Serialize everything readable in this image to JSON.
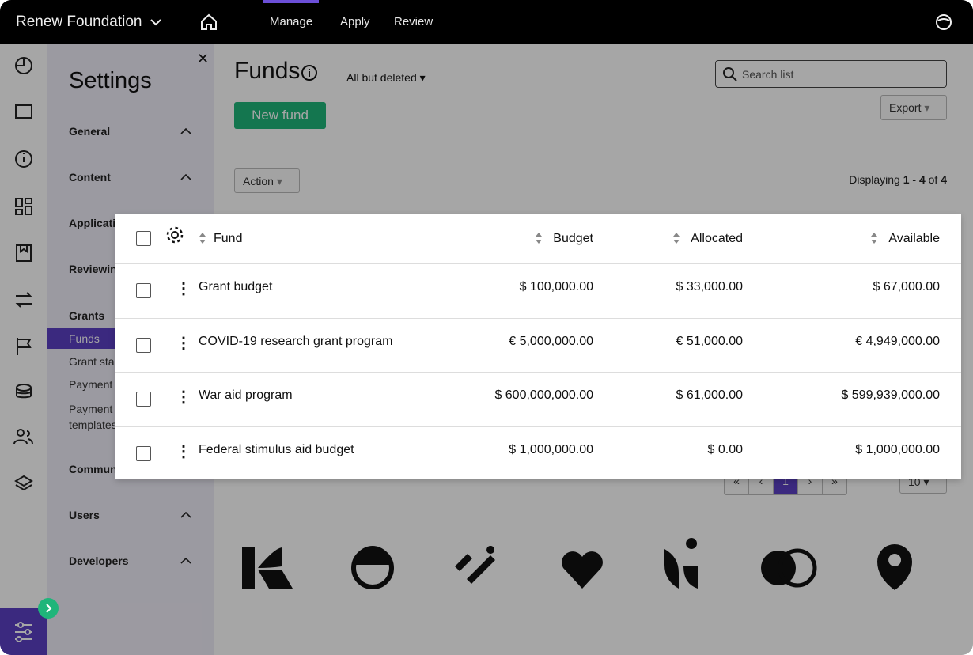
{
  "header": {
    "org": "Renew Foundation",
    "nav": [
      "Manage",
      "Apply",
      "Review"
    ]
  },
  "settings": {
    "title": "Settings",
    "sections": [
      "General",
      "Content",
      "Applicati",
      "Reviewin"
    ],
    "grants": {
      "title": "Grants",
      "items": [
        "Funds",
        "Grant sta",
        "Payment",
        "Payment templates"
      ]
    },
    "more_sections": [
      "Commun",
      "Users",
      "Developers"
    ]
  },
  "main": {
    "title": "Funds",
    "filter": "All but deleted",
    "new_button": "New fund",
    "search_placeholder": "Search list",
    "export": "Export",
    "action": "Action",
    "displaying": {
      "prefix": "Displaying",
      "range": "1 - 4",
      "of": "of",
      "total": "4"
    }
  },
  "table": {
    "columns": [
      "Fund",
      "Budget",
      "Allocated",
      "Available"
    ],
    "rows": [
      [
        "Grant budget",
        "$ 100,000.00",
        "$ 33,000.00",
        "$ 67,000.00"
      ],
      [
        "COVID-19 research grant program",
        "€ 5,000,000.00",
        "€ 51,000.00",
        "€ 4,949,000.00"
      ],
      [
        "War aid program",
        "$ 600,000,000.00",
        "$ 61,000.00",
        "$ 599,939,000.00"
      ],
      [
        "Federal stimulus aid budget",
        "$ 1,000,000.00",
        "$ 0.00",
        "$ 1,000,000.00"
      ]
    ]
  },
  "pagination": {
    "pages": [
      "«",
      "‹",
      "1",
      "›",
      "»"
    ],
    "per_page": "10"
  }
}
